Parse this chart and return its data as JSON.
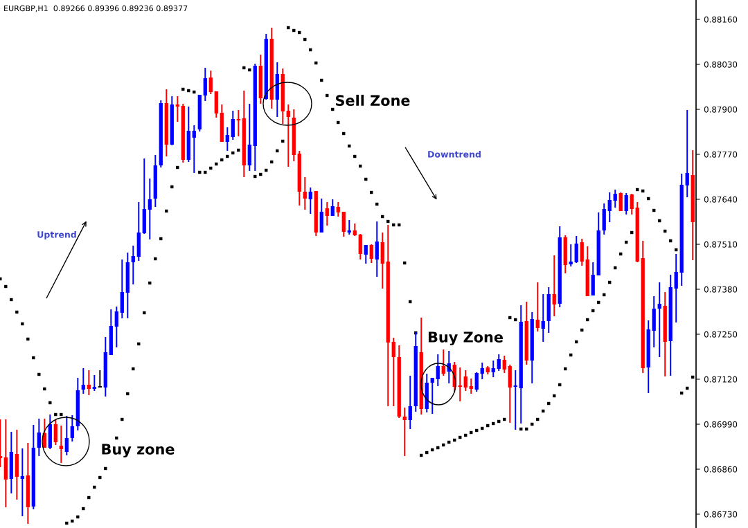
{
  "chart_data": {
    "type": "candlestick",
    "title": "EURGBP,H1  0.89266 0.89396 0.89236 0.89377",
    "categories": [
      null,
      null,
      null,
      null,
      null,
      null,
      null,
      null,
      null,
      null,
      null,
      null,
      null,
      null,
      null,
      null,
      null,
      null,
      null,
      null,
      null,
      null,
      null,
      null,
      null,
      null,
      null,
      null,
      null,
      null,
      null,
      null,
      null,
      null,
      null,
      null,
      null,
      null,
      null,
      null,
      null,
      null,
      null,
      null,
      null,
      null,
      null,
      null,
      null,
      null,
      null,
      null,
      null,
      null,
      null,
      null,
      null,
      null,
      null,
      null,
      null,
      null,
      null,
      null,
      null,
      null,
      null,
      null,
      null,
      null,
      null,
      null,
      null,
      null,
      null,
      null,
      null,
      null,
      null,
      null,
      null,
      null,
      null,
      null,
      null,
      null,
      null,
      null,
      null,
      null,
      null,
      null,
      null,
      null,
      null,
      null,
      null,
      null,
      null,
      null,
      null,
      null,
      null,
      null,
      null,
      null,
      null,
      null,
      null,
      null,
      null,
      null,
      null,
      null,
      null,
      null,
      null,
      null,
      null,
      null,
      null,
      null,
      null,
      null,
      null,
      null
    ],
    "ohlc": [
      [
        0.86898,
        0.87004,
        0.86866,
        0.86892
      ],
      [
        0.86894,
        0.87004,
        0.8675,
        0.8683
      ],
      [
        0.86832,
        0.86968,
        0.8679,
        0.8691
      ],
      [
        0.86904,
        0.86974,
        0.86772,
        0.86838
      ],
      [
        0.86832,
        0.8692,
        0.86724,
        0.8684
      ],
      [
        0.86842,
        0.86936,
        0.86702,
        0.8675
      ],
      [
        0.86752,
        0.86988,
        0.86744,
        0.86922
      ],
      [
        0.86922,
        0.87006,
        0.86898,
        0.86966
      ],
      [
        0.86964,
        0.87006,
        0.86922,
        0.86922
      ],
      [
        0.86922,
        0.87018,
        0.86918,
        0.8699
      ],
      [
        0.8699,
        0.87002,
        0.8693,
        0.86938
      ],
      [
        0.86928,
        0.86986,
        0.86878,
        0.86918
      ],
      [
        0.8691,
        0.87014,
        0.869,
        0.8695
      ],
      [
        0.8695,
        0.87016,
        0.8694,
        0.86984
      ],
      [
        0.86984,
        0.87124,
        0.86972,
        0.87088
      ],
      [
        0.8709,
        0.87152,
        0.87078,
        0.87104
      ],
      [
        0.87104,
        0.87146,
        0.87074,
        0.87092
      ],
      [
        0.87092,
        0.87132,
        0.87086,
        0.87098
      ],
      [
        0.87098,
        0.87146,
        0.87096,
        0.87098
      ],
      [
        0.87096,
        0.87242,
        0.8707,
        0.87198
      ],
      [
        0.8719,
        0.87322,
        0.8719,
        0.87274
      ],
      [
        0.87272,
        0.8733,
        0.87212,
        0.87316
      ],
      [
        0.87312,
        0.87466,
        0.87296,
        0.87372
      ],
      [
        0.8737,
        0.87486,
        0.87296,
        0.87458
      ],
      [
        0.87458,
        0.87506,
        0.87394,
        0.87476
      ],
      [
        0.87474,
        0.87632,
        0.87462,
        0.87544
      ],
      [
        0.87542,
        0.87758,
        0.8754,
        0.87612
      ],
      [
        0.8761,
        0.877,
        0.87524,
        0.8764
      ],
      [
        0.87642,
        0.87768,
        0.87618,
        0.87738
      ],
      [
        0.87738,
        0.87926,
        0.87732,
        0.87918
      ],
      [
        0.87918,
        0.87958,
        0.87764,
        0.87798
      ],
      [
        0.87798,
        0.87938,
        0.87796,
        0.87914
      ],
      [
        0.87914,
        0.87938,
        0.87864,
        0.87908
      ],
      [
        0.8791,
        0.87916,
        0.87746,
        0.87754
      ],
      [
        0.87754,
        0.87908,
        0.87748,
        0.87838
      ],
      [
        0.87818,
        0.87854,
        0.87716,
        0.87838
      ],
      [
        0.87842,
        0.87942,
        0.87836,
        0.87942
      ],
      [
        0.8794,
        0.8802,
        0.87924,
        0.8799
      ],
      [
        0.87992,
        0.88012,
        0.87944,
        0.8795
      ],
      [
        0.87952,
        0.87952,
        0.87876,
        0.87888
      ],
      [
        0.8789,
        0.87914,
        0.87806,
        0.87806
      ],
      [
        0.87806,
        0.87848,
        0.8778,
        0.87826
      ],
      [
        0.8782,
        0.87896,
        0.87812,
        0.87872
      ],
      [
        0.87872,
        0.87898,
        0.87822,
        0.87868
      ],
      [
        0.87874,
        0.87954,
        0.87704,
        0.87738
      ],
      [
        0.87738,
        0.87916,
        0.87722,
        0.87798
      ],
      [
        0.87794,
        0.88032,
        0.87722,
        0.88026
      ],
      [
        0.88026,
        0.88058,
        0.87916,
        0.87932
      ],
      [
        0.8793,
        0.88118,
        0.87928,
        0.88104
      ],
      [
        0.88104,
        0.88136,
        0.87902,
        0.87928
      ],
      [
        0.87928,
        0.88036,
        0.87878,
        0.88002
      ],
      [
        0.88002,
        0.88018,
        0.87858,
        0.87894
      ],
      [
        0.87896,
        0.87914,
        0.87734,
        0.87878
      ],
      [
        0.87876,
        0.879,
        0.8775,
        0.87768
      ],
      [
        0.87772,
        0.8778,
        0.87622,
        0.87662
      ],
      [
        0.87662,
        0.87704,
        0.8761,
        0.87642
      ],
      [
        0.8764,
        0.87674,
        0.87598,
        0.87662
      ],
      [
        0.87664,
        0.87664,
        0.87534,
        0.87544
      ],
      [
        0.87544,
        0.87642,
        0.87544,
        0.87604
      ],
      [
        0.87614,
        0.87632,
        0.87564,
        0.87592
      ],
      [
        0.87592,
        0.8764,
        0.87592,
        0.8762
      ],
      [
        0.87618,
        0.87632,
        0.8759,
        0.87602
      ],
      [
        0.87604,
        0.87604,
        0.87532,
        0.87546
      ],
      [
        0.87544,
        0.8758,
        0.87538,
        0.8755
      ],
      [
        0.8755,
        0.8757,
        0.87534,
        0.87536
      ],
      [
        0.87538,
        0.8754,
        0.87466,
        0.87482
      ],
      [
        0.8748,
        0.87508,
        0.87454,
        0.87508
      ],
      [
        0.87508,
        0.8751,
        0.87456,
        0.87468
      ],
      [
        0.87466,
        0.87576,
        0.87416,
        0.87518
      ],
      [
        0.87516,
        0.87544,
        0.87382,
        0.87454
      ],
      [
        0.8746,
        0.87566,
        0.87042,
        0.87226
      ],
      [
        0.87228,
        0.8724,
        0.87042,
        0.87184
      ],
      [
        0.87184,
        0.87218,
        0.87008,
        0.87012
      ],
      [
        0.87012,
        0.87038,
        0.86898,
        0.87002
      ],
      [
        0.87002,
        0.8713,
        0.86976,
        0.87042
      ],
      [
        0.87042,
        0.87256,
        0.87026,
        0.87216
      ],
      [
        0.87198,
        0.87298,
        0.87018,
        0.87034
      ],
      [
        0.87034,
        0.87136,
        0.87024,
        0.8711
      ],
      [
        0.8711,
        0.87124,
        0.8702,
        0.87124
      ],
      [
        0.8712,
        0.87192,
        0.871,
        0.87158
      ],
      [
        0.87158,
        0.87206,
        0.8713,
        0.87136
      ],
      [
        0.87142,
        0.87202,
        0.87108,
        0.87166
      ],
      [
        0.87162,
        0.8717,
        0.87082,
        0.87098
      ],
      [
        0.87102,
        0.87154,
        0.87056,
        0.87098
      ],
      [
        0.87128,
        0.87146,
        0.87086,
        0.87096
      ],
      [
        0.871,
        0.87122,
        0.87078,
        0.87092
      ],
      [
        0.8709,
        0.8714,
        0.87084,
        0.87138
      ],
      [
        0.87136,
        0.87168,
        0.8712,
        0.87152
      ],
      [
        0.87154,
        0.87158,
        0.87134,
        0.8714
      ],
      [
        0.8714,
        0.87174,
        0.87126,
        0.87152
      ],
      [
        0.8715,
        0.87192,
        0.87144,
        0.87178
      ],
      [
        0.87176,
        0.87188,
        0.87138,
        0.87148
      ],
      [
        0.87158,
        0.87162,
        0.86994,
        0.87096
      ],
      [
        0.87098,
        0.87146,
        0.86974,
        0.87102
      ],
      [
        0.87094,
        0.87334,
        0.86992,
        0.87286
      ],
      [
        0.87288,
        0.87344,
        0.87162,
        0.87174
      ],
      [
        0.87174,
        0.87314,
        0.87108,
        0.87294
      ],
      [
        0.87292,
        0.874,
        0.87258,
        0.87268
      ],
      [
        0.87266,
        0.87366,
        0.87228,
        0.87288
      ],
      [
        0.87288,
        0.87386,
        0.87254,
        0.87366
      ],
      [
        0.87366,
        0.87478,
        0.87302,
        0.87336
      ],
      [
        0.87338,
        0.87562,
        0.87328,
        0.8753
      ],
      [
        0.8753,
        0.87536,
        0.87426,
        0.8745
      ],
      [
        0.87452,
        0.8751,
        0.87446,
        0.8746
      ],
      [
        0.87458,
        0.87534,
        0.87456,
        0.87512
      ],
      [
        0.87516,
        0.87526,
        0.87448,
        0.8746
      ],
      [
        0.87466,
        0.87504,
        0.8736,
        0.8736
      ],
      [
        0.87362,
        0.87458,
        0.87362,
        0.87422
      ],
      [
        0.8742,
        0.87602,
        0.8742,
        0.8755
      ],
      [
        0.8755,
        0.87628,
        0.87538,
        0.87612
      ],
      [
        0.87606,
        0.8766,
        0.87574,
        0.87638
      ],
      [
        0.87636,
        0.87668,
        0.87616,
        0.87656
      ],
      [
        0.87658,
        0.8766,
        0.87606,
        0.87606
      ],
      [
        0.87606,
        0.87658,
        0.87596,
        0.87652
      ],
      [
        0.87654,
        0.87656,
        0.87596,
        0.87612
      ],
      [
        0.87616,
        0.87632,
        0.87458,
        0.8746
      ],
      [
        0.8747,
        0.8752,
        0.87138,
        0.87152
      ],
      [
        0.87154,
        0.8729,
        0.8708,
        0.87264
      ],
      [
        0.8726,
        0.8736,
        0.87212,
        0.87324
      ],
      [
        0.87324,
        0.874,
        0.87184,
        0.87338
      ],
      [
        0.87332,
        0.87372,
        0.87128,
        0.87228
      ],
      [
        0.8723,
        0.87422,
        0.8713,
        0.87386
      ],
      [
        0.87382,
        0.87482,
        0.87284,
        0.8743
      ],
      [
        0.87428,
        0.87714,
        0.8739,
        0.87682
      ],
      [
        0.8768,
        0.87898,
        0.87646,
        0.87716
      ],
      [
        0.8771,
        0.87782,
        0.87464,
        0.87574
      ]
    ],
    "colors": [
      "#ff0000",
      "#ff0000",
      "#0000ff",
      "#ff0000",
      "#0000ff",
      "#ff0000",
      "#0000ff",
      "#0000ff",
      "#ff0000",
      "#0000ff",
      "#ff0000",
      "#ff0000",
      "#0000ff",
      "#0000ff",
      "#0000ff",
      "#0000ff",
      "#ff0000",
      "#0000ff",
      "#000000",
      "#0000ff",
      "#0000ff",
      "#0000ff",
      "#0000ff",
      "#0000ff",
      "#0000ff",
      "#0000ff",
      "#0000ff",
      "#0000ff",
      "#0000ff",
      "#0000ff",
      "#ff0000",
      "#0000ff",
      "#ff0000",
      "#ff0000",
      "#0000ff",
      "#0000ff",
      "#0000ff",
      "#0000ff",
      "#ff0000",
      "#ff0000",
      "#ff0000",
      "#0000ff",
      "#0000ff",
      "#ff0000",
      "#ff0000",
      "#0000ff",
      "#0000ff",
      "#ff0000",
      "#0000ff",
      "#ff0000",
      "#0000ff",
      "#ff0000",
      "#ff0000",
      "#ff0000",
      "#ff0000",
      "#ff0000",
      "#0000ff",
      "#ff0000",
      "#0000ff",
      "#ff0000",
      "#0000ff",
      "#ff0000",
      "#ff0000",
      "#0000ff",
      "#ff0000",
      "#ff0000",
      "#0000ff",
      "#ff0000",
      "#0000ff",
      "#ff0000",
      "#ff0000",
      "#ff0000",
      "#ff0000",
      "#ff0000",
      "#0000ff",
      "#0000ff",
      "#ff0000",
      "#0000ff",
      "#0000ff",
      "#0000ff",
      "#ff0000",
      "#0000ff",
      "#ff0000",
      "#ff0000",
      "#ff0000",
      "#ff0000",
      "#0000ff",
      "#0000ff",
      "#ff0000",
      "#0000ff",
      "#0000ff",
      "#ff0000",
      "#ff0000",
      "#0000ff",
      "#0000ff",
      "#ff0000",
      "#0000ff",
      "#ff0000",
      "#0000ff",
      "#0000ff",
      "#ff0000",
      "#0000ff",
      "#ff0000",
      "#0000ff",
      "#0000ff",
      "#ff0000",
      "#ff0000",
      "#0000ff",
      "#0000ff",
      "#0000ff",
      "#0000ff",
      "#0000ff",
      "#ff0000",
      "#0000ff",
      "#ff0000",
      "#ff0000",
      "#ff0000",
      "#0000ff",
      "#0000ff",
      "#0000ff",
      "#ff0000",
      "#0000ff",
      "#0000ff",
      "#0000ff",
      "#0000ff",
      "#ff0000"
    ],
    "series": [
      {
        "type": "scatter",
        "color": "#000000",
        "marker": "square",
        "values": [
          0.8741,
          0.87388,
          0.8735,
          0.87314,
          0.8728,
          0.87236,
          0.87182,
          0.87134,
          0.87092,
          0.87052,
          0.87018,
          0.87018,
          0.86704,
          0.8671,
          0.86722,
          0.86746,
          0.86778,
          0.86808,
          0.86836,
          0.86862,
          null,
          0.8695,
          0.87004,
          0.87078,
          0.8715,
          0.87222,
          0.87312,
          0.87398,
          0.87468,
          0.87526,
          0.87606,
          0.87676,
          0.87732,
          0.87958,
          0.87954,
          0.8795,
          0.87718,
          0.87718,
          0.8773,
          0.87742,
          0.87754,
          0.87764,
          0.87774,
          0.87782,
          0.8802,
          0.88014,
          0.87706,
          0.87712,
          0.87724,
          0.87748,
          0.8778,
          0.87808,
          0.88136,
          0.88128,
          0.88122,
          0.88102,
          0.88072,
          0.88034,
          0.87984,
          0.8794,
          0.879,
          0.87862,
          0.8783,
          0.87794,
          0.87764,
          0.87736,
          0.87698,
          0.8766,
          0.87626,
          0.8759,
          0.87576,
          0.87566,
          0.87566,
          0.87456,
          0.87344,
          0.87254,
          0.869,
          0.86908,
          0.86916,
          0.86922,
          0.8693,
          0.86938,
          0.86944,
          0.86952,
          0.86958,
          0.86966,
          0.86972,
          0.86978,
          0.86986,
          0.86992,
          0.86998,
          0.87004,
          0.87298,
          0.87292,
          0.86976,
          0.86976,
          0.8699,
          0.87004,
          0.87028,
          0.8705,
          0.87072,
          0.87104,
          0.8715,
          0.8719,
          0.87228,
          0.87262,
          0.87292,
          0.87318,
          0.87342,
          0.87364,
          0.874,
          0.87442,
          0.87482,
          0.87516,
          0.87544,
          0.87668,
          0.87664,
          0.87642,
          0.87608,
          0.87578,
          0.87548,
          0.8752,
          0.87494,
          0.8708,
          0.87094,
          0.87126
        ]
      }
    ],
    "ylim": [
      0.8669,
      0.88216
    ],
    "yticks": [
      {
        "value": 0.8816,
        "label": "0.88160"
      },
      {
        "value": 0.8803,
        "label": "0.88030"
      },
      {
        "value": 0.879,
        "label": "0.87900"
      },
      {
        "value": 0.8777,
        "label": "0.87770"
      },
      {
        "value": 0.8764,
        "label": "0.87640"
      },
      {
        "value": 0.8751,
        "label": "0.87510"
      },
      {
        "value": 0.8738,
        "label": "0.87380"
      },
      {
        "value": 0.8725,
        "label": "0.87250"
      },
      {
        "value": 0.8712,
        "label": "0.87120"
      },
      {
        "value": 0.8699,
        "label": "0.86990"
      },
      {
        "value": 0.8686,
        "label": "0.86860"
      },
      {
        "value": 0.8673,
        "label": "0.86730"
      }
    ],
    "annotations": [
      "Uptrend",
      "Downtrend",
      "Sell Zone",
      "Buy Zone",
      "Buy zone"
    ]
  }
}
